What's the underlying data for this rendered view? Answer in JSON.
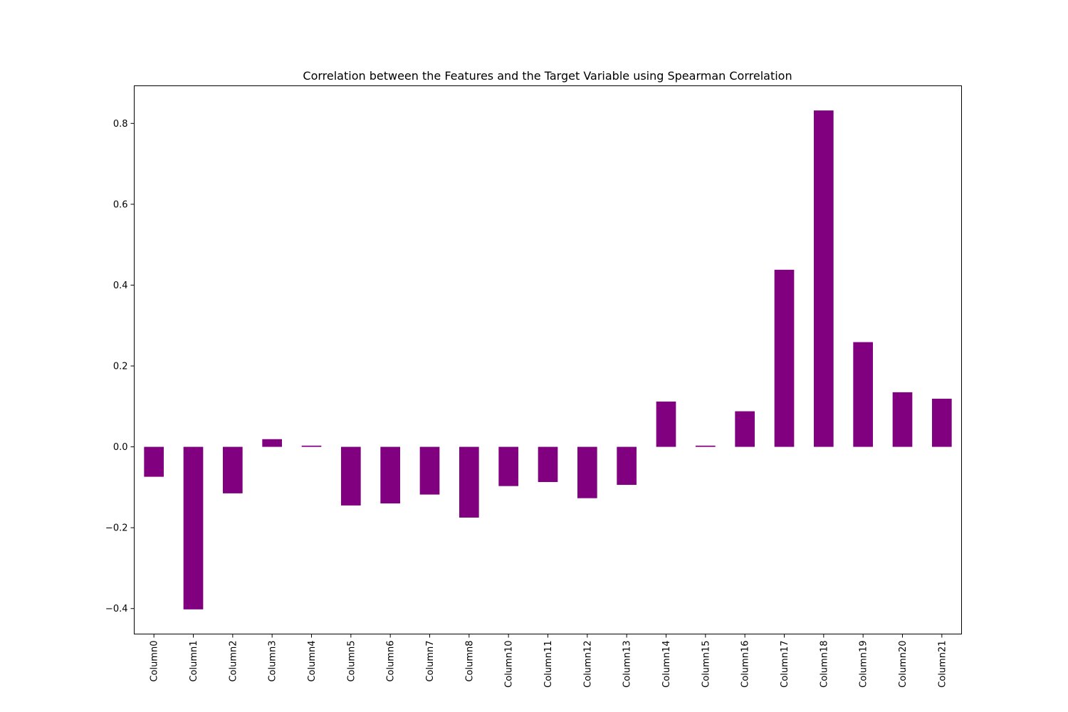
{
  "chart_data": {
    "type": "bar",
    "title": "Correlation between the Features and the Target Variable using Spearman Correlation",
    "xlabel": "",
    "ylabel": "",
    "categories": [
      "Column0",
      "Column1",
      "Column2",
      "Column3",
      "Column4",
      "Column5",
      "Column6",
      "Column7",
      "Column8",
      "Column10",
      "Column11",
      "Column12",
      "Column13",
      "Column14",
      "Column15",
      "Column16",
      "Column17",
      "Column18",
      "Column19",
      "Column20",
      "Column21"
    ],
    "values": [
      -0.074,
      -0.402,
      -0.115,
      0.019,
      0.003,
      -0.145,
      -0.14,
      -0.118,
      -0.175,
      -0.097,
      -0.087,
      -0.127,
      -0.094,
      0.112,
      0.003,
      0.088,
      0.438,
      0.832,
      0.259,
      0.135,
      0.119
    ],
    "ylim": [
      -0.463,
      0.893
    ],
    "yticks": [
      -0.4,
      -0.2,
      0.0,
      0.2,
      0.4,
      0.6,
      0.8
    ],
    "ytick_labels": [
      "−0.4",
      "−0.2",
      "0.0",
      "0.2",
      "0.4",
      "0.6",
      "0.8"
    ],
    "bar_color": "#800080",
    "grid": false,
    "legend": "none"
  }
}
